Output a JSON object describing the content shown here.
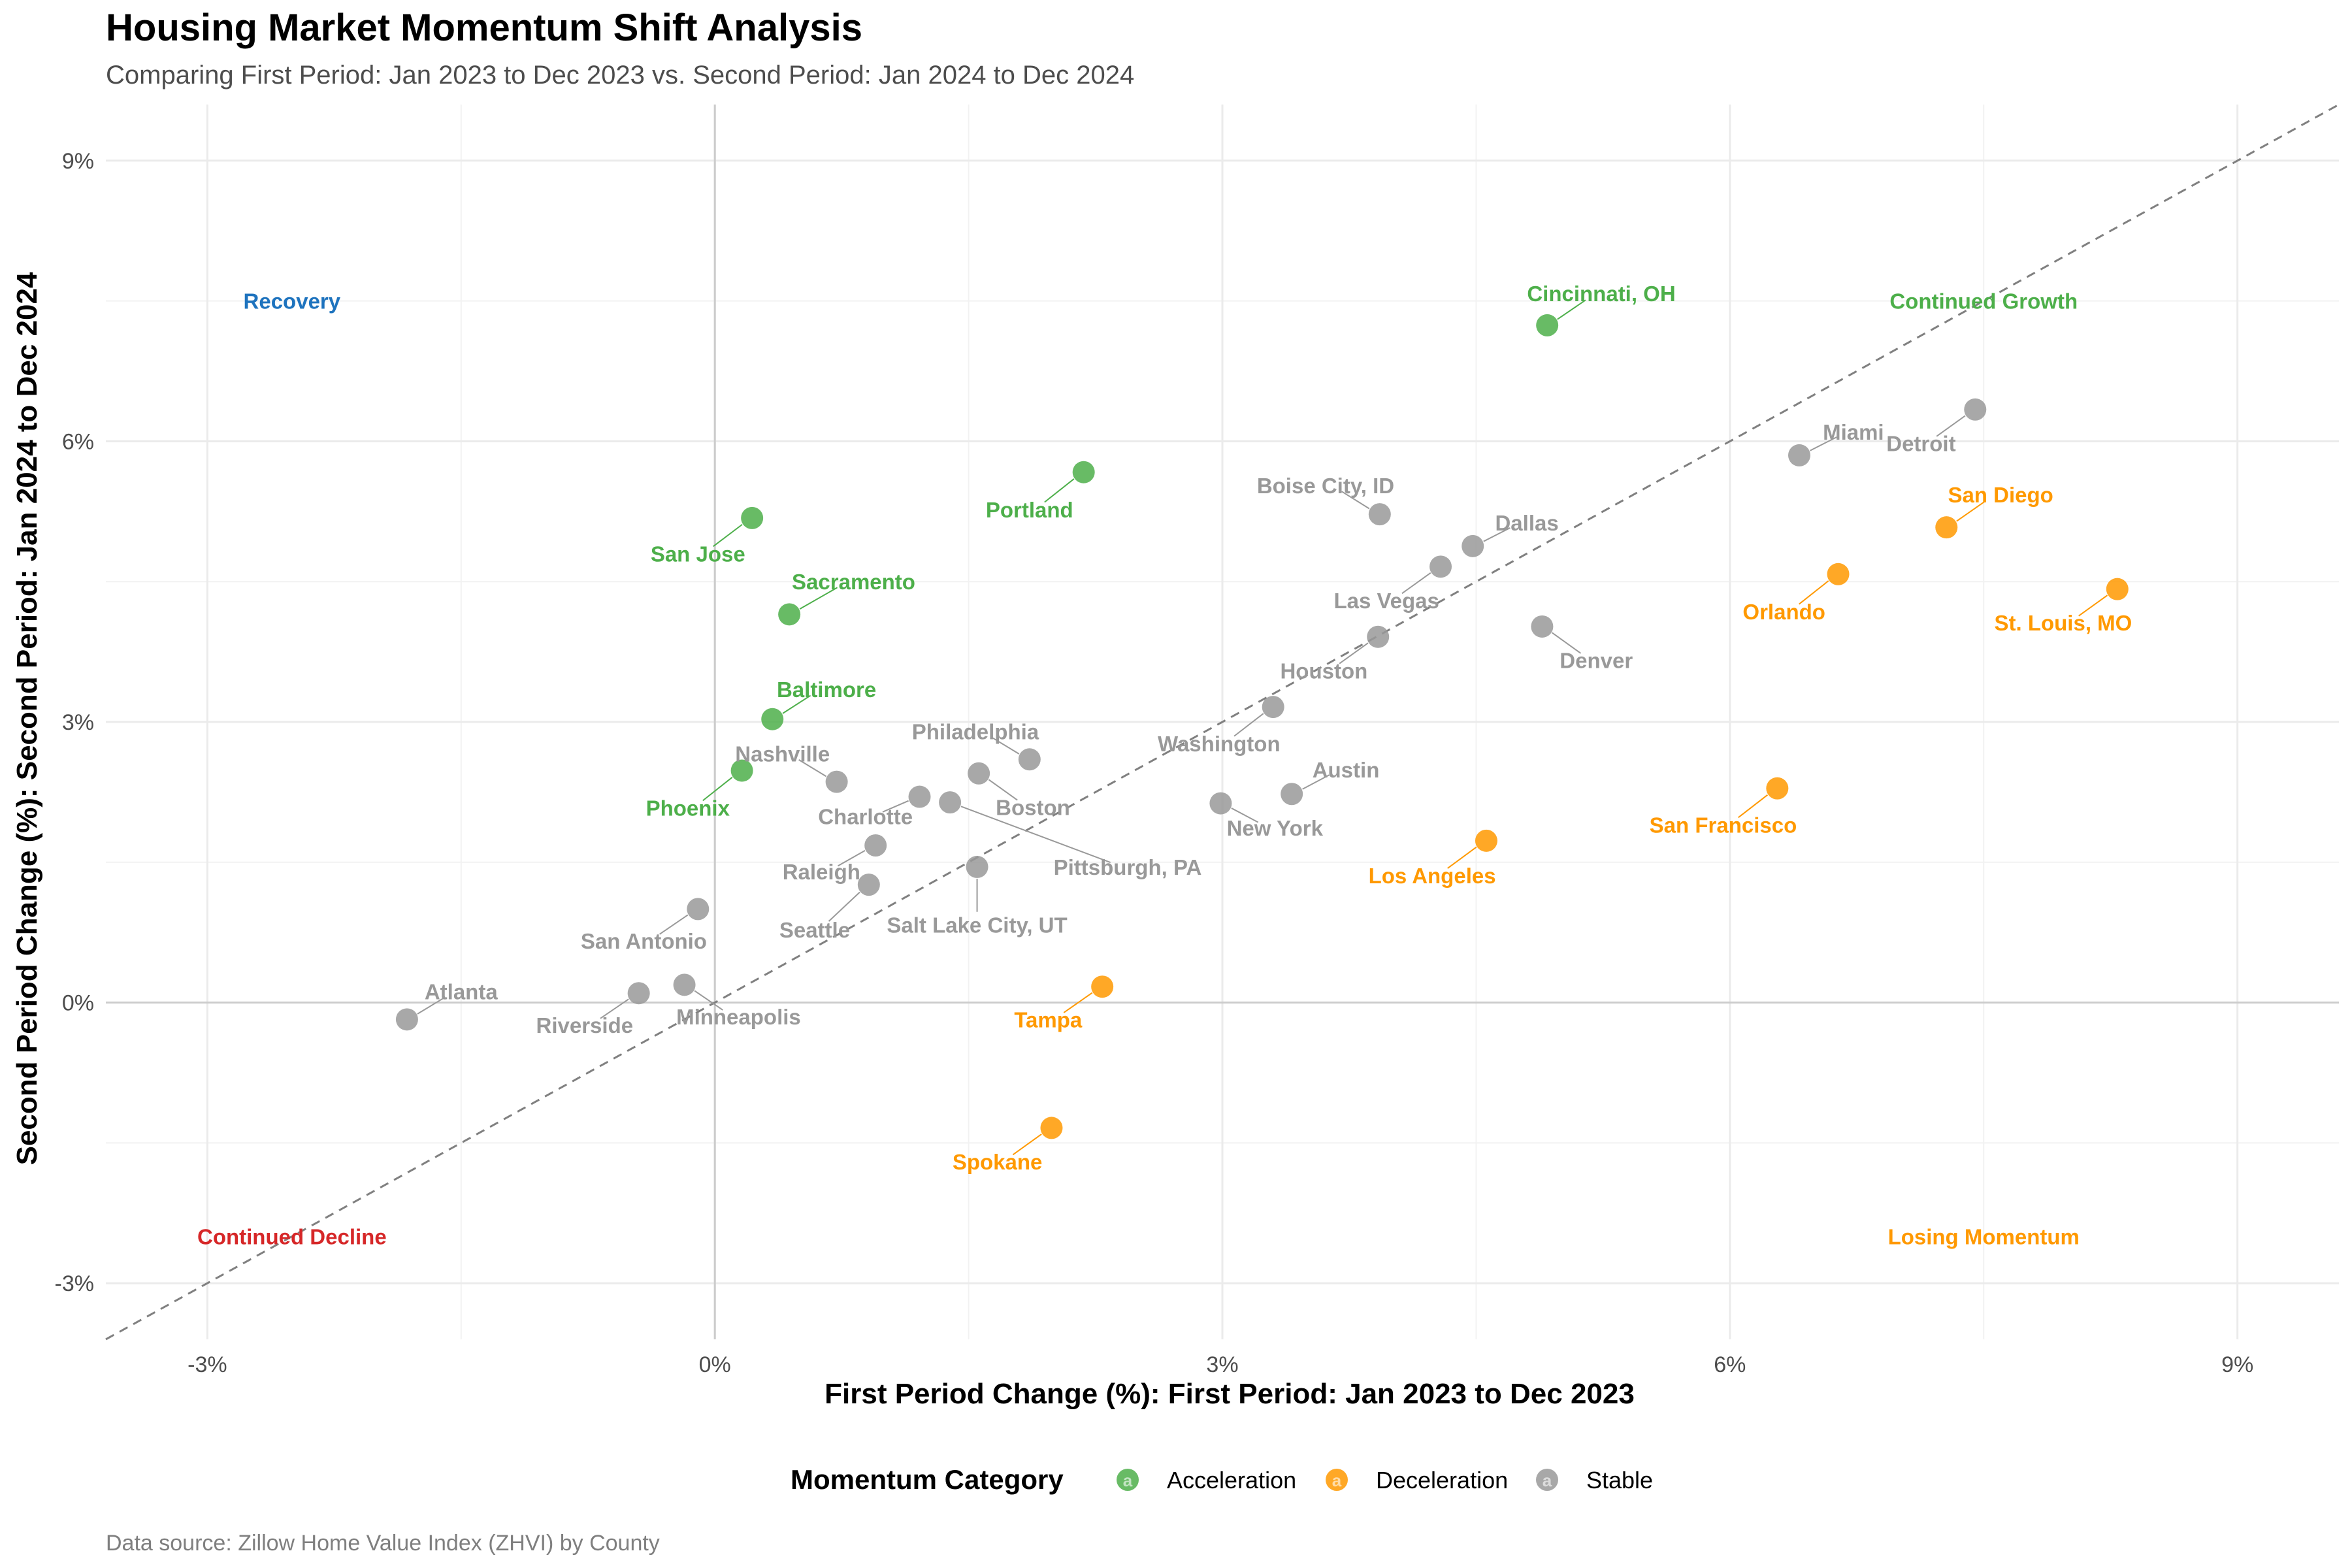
{
  "chart_data": {
    "type": "scatter",
    "title": "Housing Market Momentum Shift Analysis",
    "subtitle": "Comparing First Period: Jan 2023 to Dec 2023 vs. Second Period: Jan 2024 to Dec 2024",
    "xlabel": "First Period Change (%): First Period: Jan 2023 to Dec 2023",
    "ylabel": "Second Period Change (%): Second Period: Jan 2024 to Dec 2024",
    "caption": "Data source: Zillow Home Value Index (ZHVI) by County",
    "xlim": [
      -3.6,
      9.6
    ],
    "ylim": [
      -3.6,
      9.6
    ],
    "x_ticks": [
      -3,
      0,
      3,
      6,
      9
    ],
    "x_tick_labels": [
      "-3%",
      "0%",
      "3%",
      "6%",
      "9%"
    ],
    "y_ticks": [
      -3,
      0,
      3,
      6,
      9
    ],
    "y_tick_labels": [
      "-3%",
      "0%",
      "3%",
      "6%",
      "9%"
    ],
    "reference_line": "y = x",
    "grid": true,
    "colors": {
      "Acceleration": "#4daf4a",
      "Deceleration": "#ff9900",
      "Stable": "#999999",
      "Recovery": "#1e73be",
      "Continued Decline": "#d62728",
      "Continued Growth": "#4daf4a",
      "Losing Momentum": "#ff9900"
    },
    "legend": {
      "title": "Momentum Category",
      "position": "bottom",
      "items": [
        "Acceleration",
        "Deceleration",
        "Stable"
      ]
    },
    "quadrant_labels": [
      {
        "text": "Recovery",
        "x": -2.5,
        "y": 7.5,
        "key": "Recovery"
      },
      {
        "text": "Continued Growth",
        "x": 7.5,
        "y": 7.5,
        "key": "Continued Growth"
      },
      {
        "text": "Continued Decline",
        "x": -2.5,
        "y": -2.5,
        "key": "Continued Decline"
      },
      {
        "text": "Losing Momentum",
        "x": 7.5,
        "y": -2.5,
        "key": "Losing Momentum"
      }
    ],
    "points": [
      {
        "name": "Cincinnati, OH",
        "x": 4.92,
        "y": 7.24,
        "category": "Acceleration",
        "lx": 5.24,
        "ly": 7.58
      },
      {
        "name": "Portland",
        "x": 2.18,
        "y": 5.67,
        "category": "Acceleration",
        "lx": 1.86,
        "ly": 5.27
      },
      {
        "name": "San Jose",
        "x": 0.22,
        "y": 5.18,
        "category": "Acceleration",
        "lx": -0.1,
        "ly": 4.8
      },
      {
        "name": "Sacramento",
        "x": 0.44,
        "y": 4.15,
        "category": "Acceleration",
        "lx": 0.82,
        "ly": 4.5
      },
      {
        "name": "Baltimore",
        "x": 0.34,
        "y": 3.03,
        "category": "Acceleration",
        "lx": 0.66,
        "ly": 3.35
      },
      {
        "name": "Phoenix",
        "x": 0.16,
        "y": 2.48,
        "category": "Acceleration",
        "lx": -0.16,
        "ly": 2.08
      },
      {
        "name": "San Diego",
        "x": 7.28,
        "y": 5.08,
        "category": "Deceleration",
        "lx": 7.6,
        "ly": 5.43
      },
      {
        "name": "Orlando",
        "x": 6.64,
        "y": 4.58,
        "category": "Deceleration",
        "lx": 6.32,
        "ly": 4.18
      },
      {
        "name": "St. Louis, MO",
        "x": 8.29,
        "y": 4.42,
        "category": "Deceleration",
        "lx": 7.97,
        "ly": 4.06
      },
      {
        "name": "San Francisco",
        "x": 6.28,
        "y": 2.29,
        "category": "Deceleration",
        "lx": 5.96,
        "ly": 1.9
      },
      {
        "name": "Los Angeles",
        "x": 4.56,
        "y": 1.73,
        "category": "Deceleration",
        "lx": 4.24,
        "ly": 1.36
      },
      {
        "name": "Tampa",
        "x": 2.29,
        "y": 0.17,
        "category": "Deceleration",
        "lx": 1.97,
        "ly": -0.18
      },
      {
        "name": "Spokane",
        "x": 1.99,
        "y": -1.34,
        "category": "Deceleration",
        "lx": 1.67,
        "ly": -1.7
      },
      {
        "name": "Detroit",
        "x": 7.45,
        "y": 6.34,
        "category": "Stable",
        "lx": 7.13,
        "ly": 5.98
      },
      {
        "name": "Miami",
        "x": 6.41,
        "y": 5.85,
        "category": "Stable",
        "lx": 6.73,
        "ly": 6.1
      },
      {
        "name": "Boise City, ID",
        "x": 3.93,
        "y": 5.22,
        "category": "Stable",
        "lx": 3.61,
        "ly": 5.53
      },
      {
        "name": "Dallas",
        "x": 4.48,
        "y": 4.88,
        "category": "Stable",
        "lx": 4.8,
        "ly": 5.13
      },
      {
        "name": "Las Vegas",
        "x": 4.29,
        "y": 4.66,
        "category": "Stable",
        "lx": 3.97,
        "ly": 4.3
      },
      {
        "name": "Denver",
        "x": 4.89,
        "y": 4.02,
        "category": "Stable",
        "lx": 5.21,
        "ly": 3.66
      },
      {
        "name": "Houston",
        "x": 3.92,
        "y": 3.91,
        "category": "Stable",
        "lx": 3.6,
        "ly": 3.55
      },
      {
        "name": "Washington",
        "x": 3.3,
        "y": 3.16,
        "category": "Stable",
        "lx": 2.98,
        "ly": 2.77
      },
      {
        "name": "Austin",
        "x": 3.41,
        "y": 2.23,
        "category": "Stable",
        "lx": 3.73,
        "ly": 2.49
      },
      {
        "name": "New York",
        "x": 2.99,
        "y": 2.13,
        "category": "Stable",
        "lx": 3.31,
        "ly": 1.87
      },
      {
        "name": "Philadelphia",
        "x": 1.86,
        "y": 2.6,
        "category": "Stable",
        "lx": 1.54,
        "ly": 2.9
      },
      {
        "name": "Boston",
        "x": 1.56,
        "y": 2.45,
        "category": "Stable",
        "lx": 1.88,
        "ly": 2.09
      },
      {
        "name": "Nashville",
        "x": 0.72,
        "y": 2.36,
        "category": "Stable",
        "lx": 0.4,
        "ly": 2.66
      },
      {
        "name": "Charlotte",
        "x": 1.21,
        "y": 2.2,
        "category": "Stable",
        "lx": 0.89,
        "ly": 1.99
      },
      {
        "name": "Pittsburgh, PA",
        "x": 1.39,
        "y": 2.14,
        "category": "Stable",
        "lx": 2.44,
        "ly": 1.45
      },
      {
        "name": "Raleigh",
        "x": 0.95,
        "y": 1.68,
        "category": "Stable",
        "lx": 0.63,
        "ly": 1.4
      },
      {
        "name": "Salt Lake City, UT",
        "x": 1.55,
        "y": 1.45,
        "category": "Stable",
        "lx": 1.55,
        "ly": 0.83
      },
      {
        "name": "Seattle",
        "x": 0.91,
        "y": 1.26,
        "category": "Stable",
        "lx": 0.59,
        "ly": 0.78
      },
      {
        "name": "San Antonio",
        "x": -0.1,
        "y": 1.0,
        "category": "Stable",
        "lx": -0.42,
        "ly": 0.66
      },
      {
        "name": "Atlanta",
        "x": -1.82,
        "y": -0.18,
        "category": "Stable",
        "lx": -1.5,
        "ly": 0.12
      },
      {
        "name": "Riverside",
        "x": -0.45,
        "y": 0.1,
        "category": "Stable",
        "lx": -0.77,
        "ly": -0.24
      },
      {
        "name": "Minneapolis",
        "x": -0.18,
        "y": 0.19,
        "category": "Stable",
        "lx": 0.14,
        "ly": -0.15
      }
    ]
  }
}
